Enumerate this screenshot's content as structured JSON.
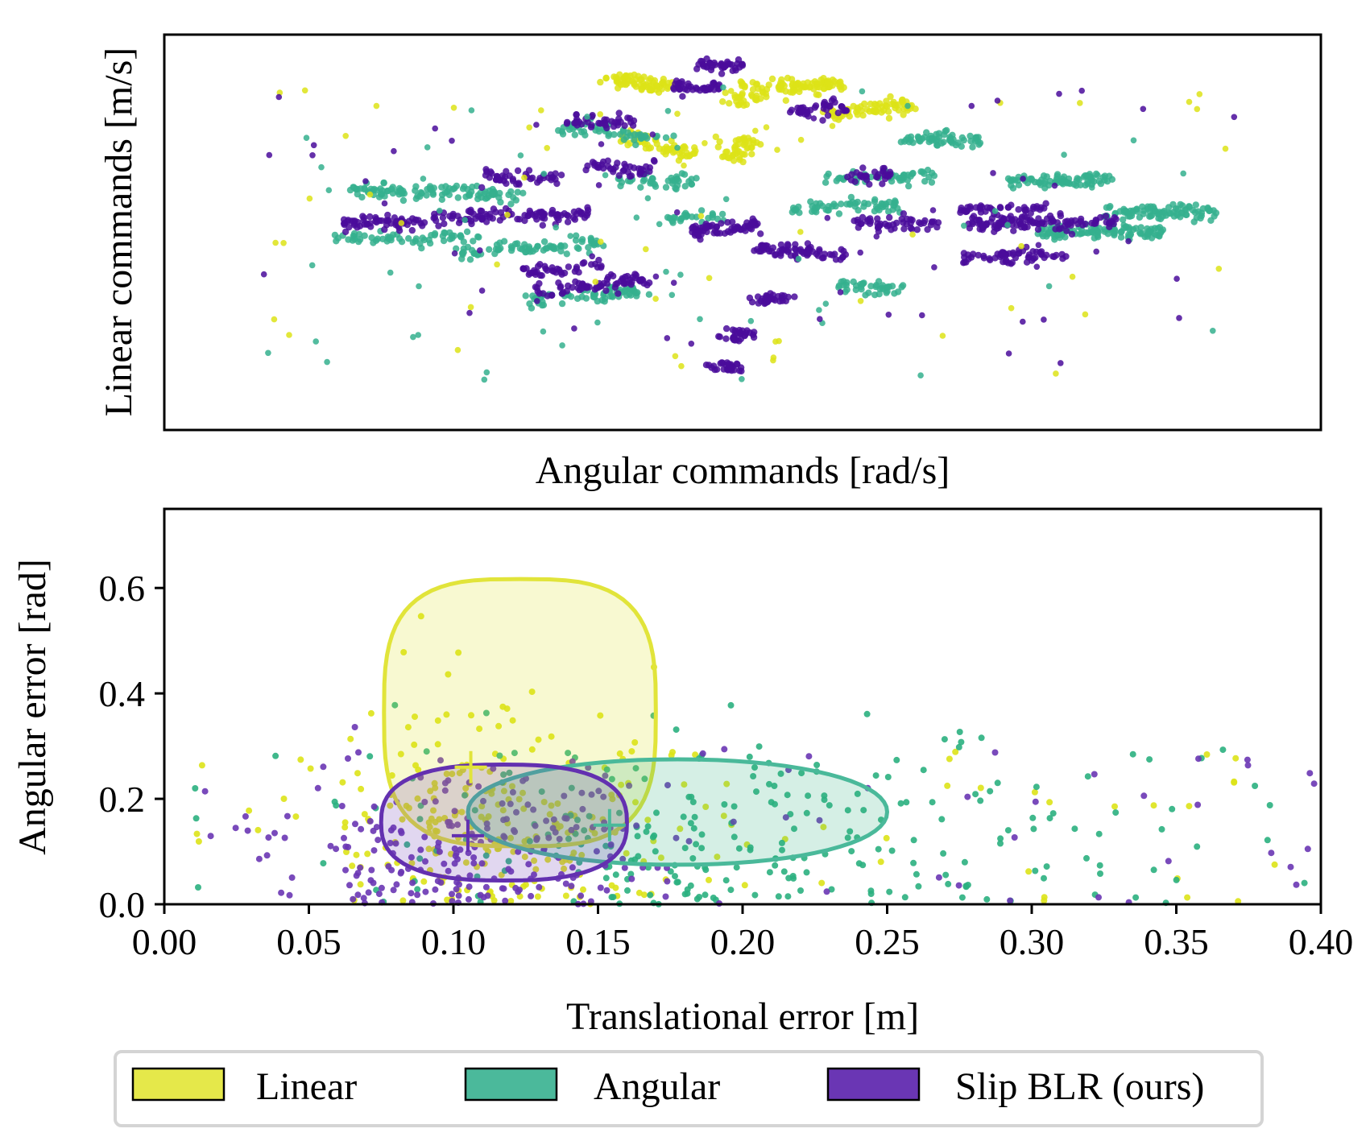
{
  "chart_data": [
    {
      "type": "scatter",
      "xlabel": "Angular commands [rad/s]",
      "ylabel": "Linear commands [m/s]",
      "xticks": [],
      "yticks": [],
      "xlim": [
        -1,
        1
      ],
      "ylim": [
        -1,
        1
      ],
      "series": [
        {
          "name": "Linear",
          "color": "#dde318",
          "clusters": [
            {
              "cx": -0.18,
              "cy": 0.76,
              "len": 0.12,
              "ang": -0.45,
              "n": 70
            },
            {
              "cx": -0.15,
              "cy": 0.44,
              "len": 0.16,
              "ang": -0.6,
              "n": 60
            },
            {
              "cx": 0.01,
              "cy": 0.7,
              "len": 0.12,
              "ang": 1.2,
              "n": 45
            },
            {
              "cx": -0.01,
              "cy": 0.42,
              "len": 0.12,
              "ang": 1.3,
              "n": 45
            },
            {
              "cx": 0.12,
              "cy": 0.74,
              "len": 0.12,
              "ang": 0.2,
              "n": 70
            },
            {
              "cx": 0.22,
              "cy": 0.62,
              "len": 0.16,
              "ang": 0.35,
              "n": 70
            }
          ]
        },
        {
          "name": "Angular",
          "color": "#35b08e",
          "clusters": [
            {
              "cx": -0.53,
              "cy": 0.2,
              "len": 0.3,
              "ang": -0.08,
              "n": 110
            },
            {
              "cx": -0.58,
              "cy": -0.03,
              "len": 0.25,
              "ang": 0.05,
              "n": 60
            },
            {
              "cx": -0.37,
              "cy": -0.08,
              "len": 0.26,
              "ang": 0.22,
              "n": 80
            },
            {
              "cx": -0.27,
              "cy": -0.32,
              "len": 0.22,
              "ang": 0.3,
              "n": 70
            },
            {
              "cx": -0.22,
              "cy": 0.5,
              "len": 0.2,
              "ang": -0.32,
              "n": 50
            },
            {
              "cx": -0.15,
              "cy": 0.26,
              "len": 0.14,
              "ang": -0.1,
              "n": 40
            },
            {
              "cx": -0.08,
              "cy": 0.07,
              "len": 0.1,
              "ang": 0.05,
              "n": 25
            },
            {
              "cx": 0.17,
              "cy": 0.13,
              "len": 0.2,
              "ang": 0.08,
              "n": 60
            },
            {
              "cx": 0.24,
              "cy": 0.28,
              "len": 0.2,
              "ang": 0.12,
              "n": 50
            },
            {
              "cx": 0.34,
              "cy": 0.47,
              "len": 0.14,
              "ang": 0.15,
              "n": 60
            },
            {
              "cx": 0.55,
              "cy": 0.26,
              "len": 0.18,
              "ang": 0.05,
              "n": 80
            },
            {
              "cx": 0.62,
              "cy": 0.0,
              "len": 0.22,
              "ang": 0.0,
              "n": 110
            },
            {
              "cx": 0.72,
              "cy": 0.1,
              "len": 0.2,
              "ang": 0.0,
              "n": 90
            },
            {
              "cx": 0.22,
              "cy": -0.28,
              "len": 0.12,
              "ang": -0.2,
              "n": 40
            }
          ]
        },
        {
          "name": "Slip BLR (ours)",
          "color": "#4a0c9b",
          "clusters": [
            {
              "cx": -0.4,
              "cy": 0.08,
              "len": 0.27,
              "ang": 0.05,
              "n": 100
            },
            {
              "cx": -0.62,
              "cy": 0.05,
              "len": 0.14,
              "ang": -0.05,
              "n": 60
            },
            {
              "cx": -0.38,
              "cy": 0.28,
              "len": 0.14,
              "ang": -0.1,
              "n": 45
            },
            {
              "cx": -0.26,
              "cy": -0.27,
              "len": 0.2,
              "ang": 0.35,
              "n": 70
            },
            {
              "cx": -0.31,
              "cy": -0.19,
              "len": 0.14,
              "ang": 0.2,
              "n": 40
            },
            {
              "cx": -0.21,
              "cy": 0.33,
              "len": 0.12,
              "ang": -0.25,
              "n": 40
            },
            {
              "cx": -0.24,
              "cy": 0.56,
              "len": 0.12,
              "ang": -0.3,
              "n": 40
            },
            {
              "cx": -0.08,
              "cy": 0.73,
              "len": 0.08,
              "ang": -0.1,
              "n": 40
            },
            {
              "cx": -0.04,
              "cy": 0.84,
              "len": 0.08,
              "ang": -0.2,
              "n": 40
            },
            {
              "cx": -0.03,
              "cy": 0.02,
              "len": 0.12,
              "ang": 0.25,
              "n": 70
            },
            {
              "cx": 0.1,
              "cy": -0.1,
              "len": 0.16,
              "ang": -0.25,
              "n": 70
            },
            {
              "cx": 0.05,
              "cy": -0.34,
              "len": 0.06,
              "ang": 1.2,
              "n": 35
            },
            {
              "cx": -0.01,
              "cy": -0.52,
              "len": 0.06,
              "ang": 1.4,
              "n": 30
            },
            {
              "cx": -0.02,
              "cy": -0.68,
              "len": 0.04,
              "ang": 1.4,
              "n": 30
            },
            {
              "cx": 0.13,
              "cy": 0.62,
              "len": 0.1,
              "ang": 0.3,
              "n": 40
            },
            {
              "cx": 0.22,
              "cy": 0.28,
              "len": 0.08,
              "ang": 0.2,
              "n": 30
            },
            {
              "cx": 0.26,
              "cy": 0.04,
              "len": 0.16,
              "ang": -0.12,
              "n": 50
            },
            {
              "cx": 0.45,
              "cy": 0.12,
              "len": 0.16,
              "ang": 0.15,
              "n": 40
            },
            {
              "cx": 0.52,
              "cy": 0.05,
              "len": 0.26,
              "ang": 0.0,
              "n": 120
            },
            {
              "cx": 0.47,
              "cy": -0.12,
              "len": 0.18,
              "ang": 0.0,
              "n": 60
            }
          ]
        }
      ]
    },
    {
      "type": "scatter",
      "xlabel": "Translational error [m]",
      "ylabel": "Angular error [rad]",
      "xlim": [
        0.0,
        0.4
      ],
      "ylim": [
        0.0,
        0.75
      ],
      "xticks": [
        0.0,
        0.05,
        0.1,
        0.15,
        0.2,
        0.25,
        0.3,
        0.35,
        0.4
      ],
      "xtick_labels": [
        "0.00",
        "0.05",
        "0.10",
        "0.15",
        "0.20",
        "0.25",
        "0.30",
        "0.35",
        "0.40"
      ],
      "yticks": [
        0.0,
        0.2,
        0.4,
        0.6
      ],
      "ytick_labels": [
        "0.0",
        "0.2",
        "0.4",
        "0.6"
      ],
      "series": [
        {
          "name": "Linear",
          "color": "#dde318",
          "edge_color": "#e1e43a",
          "mean": [
            0.106,
            0.26
          ],
          "contour": [
            [
              0.123,
              0.617
            ],
            [
              0.076,
              0.43
            ],
            [
              0.085,
              0.18
            ],
            [
              0.123,
              0.11
            ],
            [
              0.16,
              0.18
            ],
            [
              0.17,
              0.43
            ]
          ],
          "scatter_center": [
            0.09,
            0.15
          ],
          "scatter_spread": [
            0.045,
            0.12
          ]
        },
        {
          "name": "Angular",
          "color": "#2bb07f",
          "edge_color": "#4ab99a",
          "mean": [
            0.154,
            0.15
          ],
          "contour": [
            [
              0.18,
              0.275
            ],
            [
              0.105,
              0.18
            ],
            [
              0.18,
              0.075
            ],
            [
              0.25,
              0.18
            ]
          ],
          "scatter_center": [
            0.16,
            0.12
          ],
          "scatter_spread": [
            0.08,
            0.1
          ]
        },
        {
          "name": "Slip BLR (ours)",
          "color": "#6a36b4",
          "edge_color": "#6330b0",
          "mean": [
            0.105,
            0.13
          ],
          "contour": [
            [
              0.12,
              0.265
            ],
            [
              0.075,
              0.16
            ],
            [
              0.12,
              0.045
            ],
            [
              0.16,
              0.16
            ]
          ],
          "scatter_center": [
            0.09,
            0.1
          ],
          "scatter_spread": [
            0.04,
            0.1
          ]
        }
      ]
    }
  ],
  "legend": {
    "placement": "bottom-center",
    "items": [
      {
        "label": "Linear",
        "color": "#e5e84a"
      },
      {
        "label": "Angular",
        "color": "#4bb99b"
      },
      {
        "label": "Slip BLR (ours)",
        "color": "#6a36b4"
      }
    ]
  }
}
